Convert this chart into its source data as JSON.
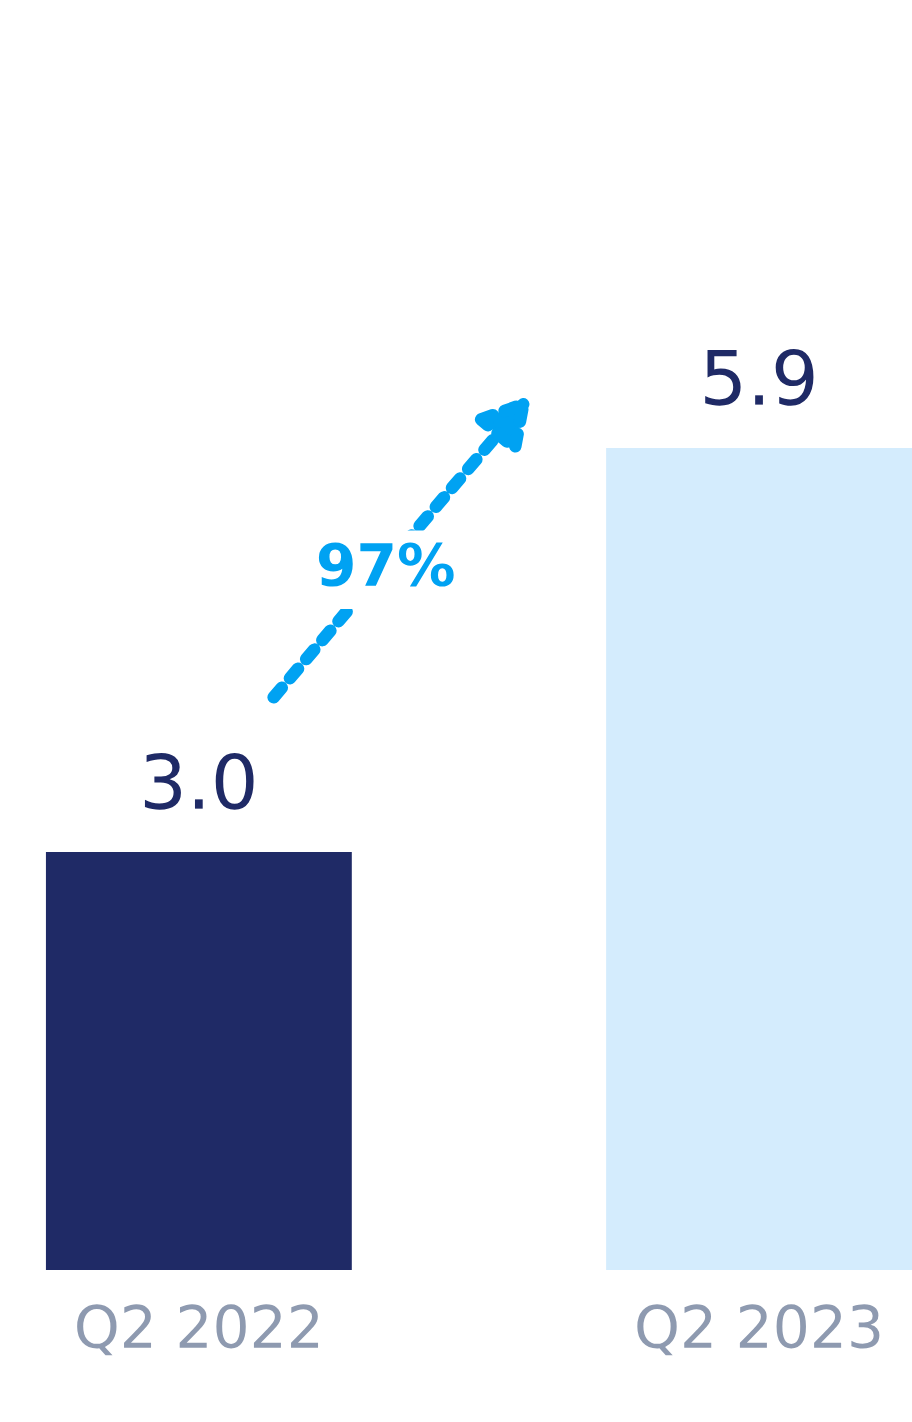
{
  "chart_data": {
    "type": "bar",
    "categories": [
      "Q2 2022",
      "Q2 2023"
    ],
    "values": [
      3.0,
      5.9
    ],
    "colors": [
      "#1f2a66",
      "#d4ecfd"
    ],
    "value_labels": [
      "3.0",
      "5.9"
    ],
    "annotations": [
      "97%"
    ],
    "grid": false,
    "legend": false
  }
}
